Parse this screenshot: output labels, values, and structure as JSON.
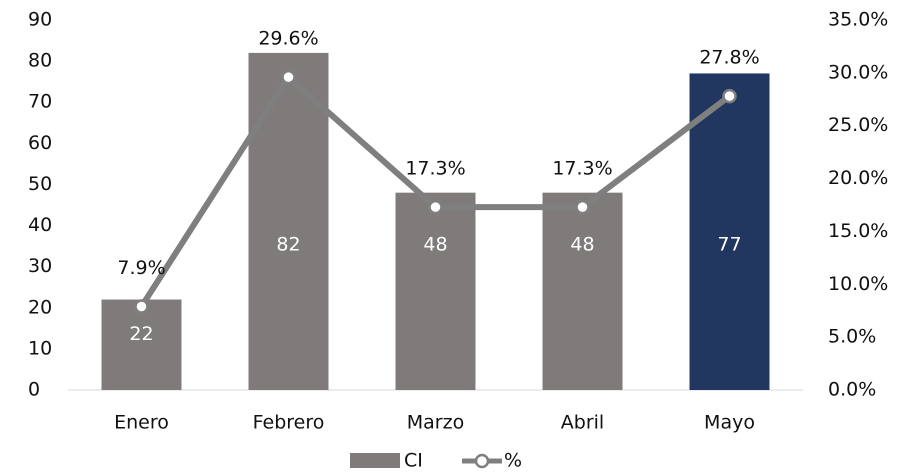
{
  "chart_data": {
    "type": "bar_line",
    "categories": [
      "Enero",
      "Febrero",
      "Marzo",
      "Abril",
      "Mayo"
    ],
    "series": [
      {
        "name": "CI",
        "type": "bar",
        "colors": [
          "#7f7b7b",
          "#7f7b7b",
          "#7f7b7b",
          "#7f7b7b",
          "#22375f"
        ],
        "color": "#7f7b7b",
        "values": [
          22,
          82,
          48,
          48,
          77
        ]
      },
      {
        "name": "%",
        "type": "line",
        "axis": "y2",
        "color": "#7f7f7f",
        "values": [
          7.9,
          29.6,
          17.3,
          17.3,
          27.8
        ],
        "value_labels": [
          "7.9%",
          "29.6%",
          "17.3%",
          "17.3%",
          "27.8%"
        ]
      }
    ],
    "ylim": [
      0,
      90
    ],
    "yticks": [
      0,
      10,
      20,
      30,
      40,
      50,
      60,
      70,
      80,
      90
    ],
    "y2lim": [
      0,
      35
    ],
    "y2ticks": [
      {
        "value": 0,
        "label": "0.0%"
      },
      {
        "value": 5,
        "label": "5.0%"
      },
      {
        "value": 10,
        "label": "10.0%"
      },
      {
        "value": 15,
        "label": "15.0%"
      },
      {
        "value": 20,
        "label": "20.0%"
      },
      {
        "value": 25,
        "label": "25.0%"
      },
      {
        "value": 30,
        "label": "30.0%"
      },
      {
        "value": 35,
        "label": "35.0%"
      }
    ],
    "legend": "bottom"
  }
}
